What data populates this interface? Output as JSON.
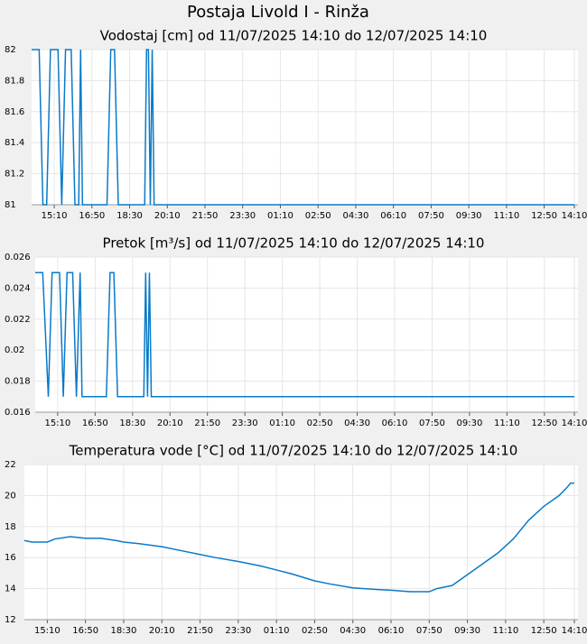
{
  "title": "Postaja Livold I - Rinža",
  "chart_data": [
    {
      "type": "line",
      "title": "Vodostaj [cm] od 11/07/2025 14:10 do 12/07/2025 14:10",
      "x": [
        "14:10",
        "14:30",
        "14:40",
        "14:50",
        "15:00",
        "15:20",
        "15:30",
        "15:40",
        "15:55",
        "16:05",
        "16:15",
        "16:20",
        "16:25",
        "17:30",
        "17:40",
        "17:50",
        "18:00",
        "19:10",
        "19:15",
        "19:20",
        "19:25",
        "19:30",
        "19:35",
        "14:10"
      ],
      "series": [
        {
          "color": "#0a7ac8",
          "values": [
            82,
            82,
            81,
            81,
            82,
            82,
            81,
            82,
            82,
            81,
            81,
            82,
            81,
            81,
            82,
            82,
            81,
            81,
            82,
            82,
            81,
            82,
            81,
            81
          ]
        }
      ],
      "ylim": [
        81,
        82
      ],
      "yticks": [
        81,
        81.2,
        81.4,
        81.6,
        81.8,
        82
      ],
      "xticks": [
        "15:10",
        "16:50",
        "18:30",
        "20:10",
        "21:50",
        "23:30",
        "01:10",
        "02:50",
        "04:30",
        "06:10",
        "07:50",
        "09:30",
        "11:10",
        "12:50",
        "14:10"
      ],
      "grid": true
    },
    {
      "type": "line",
      "title": "Pretok [m³/s] od 11/07/2025 14:10 do 12/07/2025 14:10",
      "x": [
        "14:10",
        "14:30",
        "14:45",
        "14:55",
        "15:15",
        "15:25",
        "15:35",
        "15:50",
        "16:00",
        "16:10",
        "16:15",
        "17:20",
        "17:30",
        "17:40",
        "17:50",
        "19:00",
        "19:05",
        "19:10",
        "19:15",
        "19:20",
        "14:10"
      ],
      "series": [
        {
          "color": "#0a7ac8",
          "values": [
            0.025,
            0.025,
            0.017,
            0.025,
            0.025,
            0.017,
            0.025,
            0.025,
            0.017,
            0.025,
            0.017,
            0.017,
            0.025,
            0.025,
            0.017,
            0.017,
            0.025,
            0.017,
            0.025,
            0.017,
            0.017
          ]
        }
      ],
      "ylim": [
        0.016,
        0.026
      ],
      "yticks": [
        0.016,
        0.018,
        0.02,
        0.022,
        0.024,
        0.026
      ],
      "xticks": [
        "15:10",
        "16:50",
        "18:30",
        "20:10",
        "21:50",
        "23:30",
        "01:10",
        "02:50",
        "04:30",
        "06:10",
        "07:50",
        "09:30",
        "11:10",
        "12:50",
        "14:10"
      ],
      "grid": true
    },
    {
      "type": "line",
      "title": "Temperatura vode [°C] od 11/07/2025 14:10 do 12/07/2025 14:10",
      "x": [
        "14:10",
        "14:30",
        "15:10",
        "15:30",
        "16:10",
        "16:50",
        "17:30",
        "18:10",
        "18:30",
        "19:10",
        "20:10",
        "21:10",
        "21:50",
        "22:30",
        "23:30",
        "00:30",
        "01:10",
        "01:50",
        "02:50",
        "03:30",
        "04:30",
        "05:30",
        "06:10",
        "07:00",
        "07:50",
        "08:10",
        "08:50",
        "09:30",
        "10:10",
        "10:50",
        "11:30",
        "12:10",
        "12:50",
        "13:30",
        "13:50",
        "14:00",
        "14:10"
      ],
      "series": [
        {
          "color": "#0a7ac8",
          "values": [
            17.1,
            17.0,
            17.0,
            17.2,
            17.35,
            17.25,
            17.25,
            17.1,
            17.0,
            16.9,
            16.7,
            16.4,
            16.2,
            16.0,
            15.75,
            15.45,
            15.2,
            14.95,
            14.5,
            14.3,
            14.05,
            13.95,
            13.9,
            13.8,
            13.8,
            14.0,
            14.2,
            14.9,
            15.6,
            16.3,
            17.2,
            18.4,
            19.3,
            20.0,
            20.5,
            20.8,
            20.8
          ]
        }
      ],
      "ylim": [
        12,
        22
      ],
      "yticks": [
        12,
        14,
        16,
        18,
        20,
        22
      ],
      "xticks": [
        "15:10",
        "16:50",
        "18:30",
        "20:10",
        "21:50",
        "23:30",
        "01:10",
        "02:50",
        "04:30",
        "06:10",
        "07:50",
        "09:30",
        "11:10",
        "12:50",
        "14:10"
      ],
      "grid": true
    }
  ]
}
